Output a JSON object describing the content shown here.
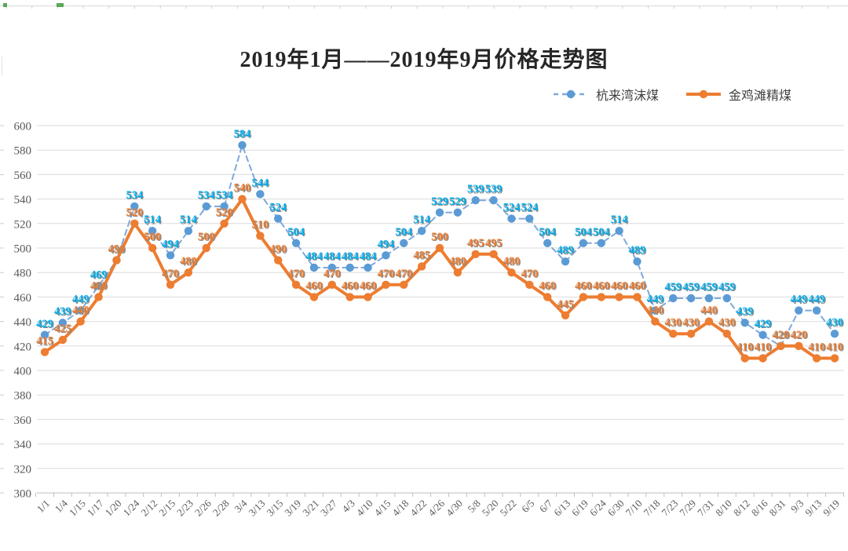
{
  "chart_data": {
    "type": "line",
    "title": "2019年1月——2019年9月价格走势图",
    "categories": [
      "1/1",
      "1/4",
      "1/15",
      "1/17",
      "1/20",
      "1/24",
      "2/12",
      "2/15",
      "2/23",
      "2/26",
      "2/28",
      "3/4",
      "3/13",
      "3/15",
      "3/19",
      "3/21",
      "3/27",
      "4/3",
      "4/10",
      "4/15",
      "4/18",
      "4/22",
      "4/26",
      "4/30",
      "5/8",
      "5/20",
      "5/22",
      "6/5",
      "6/7",
      "6/13",
      "6/19",
      "6/24",
      "6/30",
      "7/10",
      "7/18",
      "7/23",
      "7/29",
      "7/31",
      "8/10",
      "8/12",
      "8/16",
      "8/31",
      "9/3",
      "9/13",
      "9/19"
    ],
    "series": [
      {
        "name": "杭来湾沫煤",
        "color": "#5B9BD5",
        "line_color": "#7FA8DC",
        "label_color": "#00B0F0",
        "line": "dashed",
        "values": [
          429,
          439,
          449,
          469,
          490,
          534,
          514,
          494,
          514,
          534,
          534,
          584,
          544,
          524,
          504,
          484,
          484,
          484,
          484,
          494,
          504,
          514,
          529,
          529,
          539,
          539,
          524,
          524,
          504,
          489,
          504,
          504,
          514,
          489,
          449,
          459,
          459,
          459,
          459,
          439,
          429,
          420,
          449,
          449,
          430
        ]
      },
      {
        "name": "金鸡滩精煤",
        "color": "#ED7D31",
        "line_color": "#ED7D31",
        "label_color": "#ED7D31",
        "line": "solid",
        "values": [
          415,
          425,
          440,
          460,
          490,
          520,
          500,
          470,
          480,
          500,
          520,
          540,
          510,
          490,
          470,
          460,
          470,
          460,
          460,
          470,
          470,
          485,
          500,
          480,
          495,
          495,
          480,
          470,
          460,
          445,
          460,
          460,
          460,
          460,
          440,
          430,
          430,
          440,
          430,
          410,
          410,
          420,
          420,
          410,
          410
        ]
      }
    ],
    "ylim": [
      300,
      600
    ],
    "ytick_step": 20,
    "grid": true,
    "grid_color": "#DBDBDB",
    "axis_color": "#BFBFBF",
    "axis_label_color": "#595959",
    "legend_position": "top-right",
    "data_labels": true,
    "label_shadow_color": "#8a8a8a"
  }
}
